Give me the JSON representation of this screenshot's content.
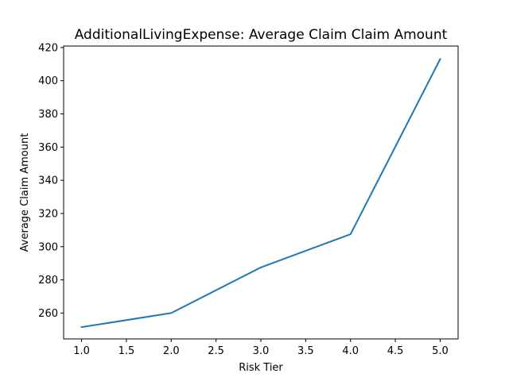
{
  "chart_data": {
    "type": "line",
    "title": "AdditionalLivingExpense: Average Claim Claim Amount",
    "xlabel": "Risk Tier",
    "ylabel": "Average Claim Amount",
    "x": [
      1.0,
      2.0,
      3.0,
      4.0,
      5.0
    ],
    "series": [
      {
        "values": [
          251.5,
          260.0,
          287.5,
          307.5,
          413.0
        ],
        "color": "#1f77b4"
      }
    ],
    "xlim": [
      0.8,
      5.2
    ],
    "ylim": [
      244.4,
      420.9
    ],
    "xticks": [
      1.0,
      1.5,
      2.0,
      2.5,
      3.0,
      3.5,
      4.0,
      4.5,
      5.0
    ],
    "xtick_labels": [
      "1.0",
      "1.5",
      "2.0",
      "2.5",
      "3.0",
      "3.5",
      "4.0",
      "4.5",
      "5.0"
    ],
    "yticks": [
      260,
      280,
      300,
      320,
      340,
      360,
      380,
      400,
      420
    ],
    "ytick_labels": [
      "260",
      "280",
      "300",
      "320",
      "340",
      "360",
      "380",
      "400",
      "420"
    ],
    "grid": false,
    "legend": "none"
  }
}
